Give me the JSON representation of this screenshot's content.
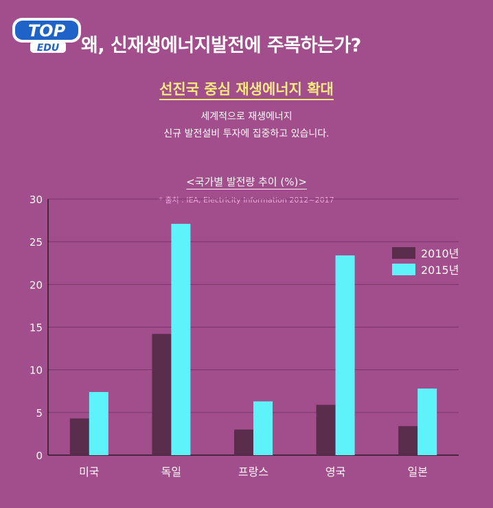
{
  "logo": {
    "top": "TOP",
    "bottom": "EDU"
  },
  "headline": "왜, 신재생에너지발전에 주목하는가?",
  "subtitle": "선진국 중심 재생에너지 확대",
  "description": [
    "세계적으로 재생에너지",
    "신규 발전설비 투자에 집중하고 있습니다."
  ],
  "colors": {
    "background": "#a24d8c",
    "series_2010": "#5a2d4d",
    "series_2015": "#5ef3fb",
    "subtitle": "#f6ea7c"
  },
  "chart_data": {
    "type": "bar",
    "title": "<국가별 발전량 추이 (%)>",
    "source": "* 출처 : IEA, Electricity Information 2012~2017",
    "categories": [
      "미국",
      "독일",
      "프랑스",
      "영국",
      "일본"
    ],
    "series": [
      {
        "name": "2010년",
        "values": [
          4.3,
          14.2,
          3.0,
          5.9,
          3.4
        ]
      },
      {
        "name": "2015년",
        "values": [
          7.4,
          27.1,
          6.3,
          23.4,
          7.8
        ]
      }
    ],
    "ylim": [
      0,
      30
    ],
    "yticks": [
      "0",
      "5",
      "10",
      "15",
      "20",
      "25",
      "30"
    ],
    "grid": true,
    "legend": "right"
  }
}
